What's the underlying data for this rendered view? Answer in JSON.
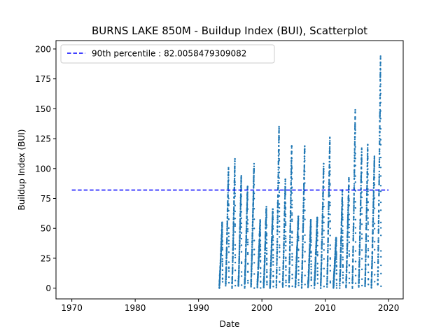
{
  "chart_data": {
    "type": "scatter",
    "title": "BURNS LAKE 850M - Buildup Index (BUI), Scatterplot",
    "xlabel": "Date",
    "ylabel": "Buildup Index (BUI)",
    "xlim": [
      1967.5,
      2022.3
    ],
    "ylim": [
      -9,
      207
    ],
    "xticks": [
      1970,
      1980,
      1990,
      2000,
      2010,
      2020
    ],
    "yticks": [
      0,
      25,
      50,
      75,
      100,
      125,
      150,
      175,
      200
    ],
    "legend_position": "top-left",
    "series": [
      {
        "name": "",
        "color": "#1f77b4",
        "marker": "point",
        "seasons": [
          {
            "year": 1993,
            "peak": 55
          },
          {
            "year": 1994,
            "peak": 101
          },
          {
            "year": 1995,
            "peak": 108
          },
          {
            "year": 1996,
            "peak": 94
          },
          {
            "year": 1997,
            "peak": 85
          },
          {
            "year": 1998,
            "peak": 104
          },
          {
            "year": 1999,
            "peak": 57
          },
          {
            "year": 2000,
            "peak": 68
          },
          {
            "year": 2001,
            "peak": 66
          },
          {
            "year": 2002,
            "peak": 137
          },
          {
            "year": 2003,
            "peak": 91
          },
          {
            "year": 2004,
            "peak": 119
          },
          {
            "year": 2005,
            "peak": 60
          },
          {
            "year": 2006,
            "peak": 120
          },
          {
            "year": 2007,
            "peak": 57
          },
          {
            "year": 2008,
            "peak": 60
          },
          {
            "year": 2009,
            "peak": 104
          },
          {
            "year": 2010,
            "peak": 126
          },
          {
            "year": 2011,
            "peak": 42
          },
          {
            "year": 2012,
            "peak": 82
          },
          {
            "year": 2013,
            "peak": 93
          },
          {
            "year": 2014,
            "peak": 149
          },
          {
            "year": 2015,
            "peak": 117
          },
          {
            "year": 2016,
            "peak": 120
          },
          {
            "year": 2017,
            "peak": 112
          },
          {
            "year": 2018,
            "peak": 195
          }
        ]
      },
      {
        "name": "90th percentile : 82.0058479309082",
        "type": "hline",
        "color": "#0000ff",
        "linestyle": "dashed",
        "y": 82.0058479309082,
        "x_range": [
          1970,
          2020
        ]
      }
    ]
  }
}
